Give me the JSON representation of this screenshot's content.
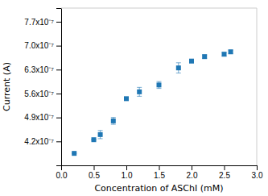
{
  "chart_data": {
    "type": "scatter",
    "marker": "square",
    "xlabel": "Concentration of ASChI (mM)",
    "ylabel": "Current (A)",
    "x": [
      0.2,
      0.5,
      0.6,
      0.8,
      1.0,
      1.2,
      1.5,
      1.8,
      2.0,
      2.2,
      2.5,
      2.6
    ],
    "values": [
      3.85e-07,
      4.25e-07,
      4.4e-07,
      4.8e-07,
      5.45e-07,
      5.65e-07,
      5.85e-07,
      6.35e-07,
      6.55e-07,
      6.68e-07,
      6.75e-07,
      6.82e-07
    ],
    "yerr": [
      0.0,
      0.0,
      1.2e-08,
      1e-08,
      0.0,
      1.3e-08,
      1e-08,
      1.5e-08,
      5e-09,
      5e-09,
      5e-09,
      5e-09
    ],
    "xlim": [
      0.0,
      3.0
    ],
    "ylim": [
      3.5e-07,
      8.1e-07
    ],
    "xticks": [
      {
        "value": 0.0,
        "label": "0.0"
      },
      0.5,
      {
        "value": 1.0,
        "label": "1.0"
      },
      1.5,
      {
        "value": 2.0,
        "label": "2.0"
      },
      2.5,
      {
        "value": 3.0,
        "label": "3.0"
      }
    ],
    "yticks": [
      {
        "value": 4.2e-07,
        "label": "4.2x10⁻⁷"
      },
      {
        "value": 4.9e-07,
        "label": "4.9x10⁻⁷"
      },
      {
        "value": 5.6e-07,
        "label": "5.6x10⁻⁷"
      },
      {
        "value": 6.3e-07,
        "label": "6.3x10⁻⁷"
      },
      {
        "value": 7e-07,
        "label": "7.0x10⁻⁷"
      },
      {
        "value": 7.7e-07,
        "label": "7.7x10⁻⁷"
      }
    ]
  }
}
